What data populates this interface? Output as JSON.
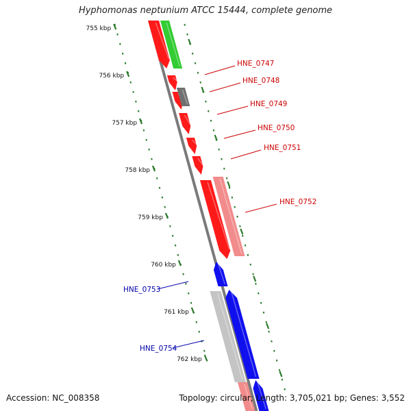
{
  "title": "Hyphomonas neptunium ATCC 15444, complete genome",
  "footer": {
    "accession": "Accession: NC_008358",
    "topology": "Topology: circular; Length: 3,705,021 bp; Genes: 3,552"
  },
  "colors": {
    "backbone": "#7a7a7a",
    "tick": "#2a7a2a",
    "dot": "#2a7a2a",
    "red": "#ff1a1a",
    "light_red": "#f28c8c",
    "green": "#33cc33",
    "gray": "#707070",
    "light_gray": "#c4c4c4",
    "blue": "#1010ee",
    "label_red": "#cc0000",
    "label_blue": "#0000aa"
  },
  "kbp_labels": [
    "755 kbp",
    "756 kbp",
    "757 kbp",
    "758 kbp",
    "759 kbp",
    "760 kbp",
    "761 kbp",
    "762 kbp"
  ],
  "genes": [
    {
      "label": "HNE_0747",
      "color": "red"
    },
    {
      "label": "HNE_0748",
      "color": "red"
    },
    {
      "label": "HNE_0749",
      "color": "red"
    },
    {
      "label": "HNE_0750",
      "color": "red"
    },
    {
      "label": "HNE_0751",
      "color": "red"
    },
    {
      "label": "HNE_0752",
      "color": "red"
    },
    {
      "label": "HNE_0753",
      "color": "blue"
    },
    {
      "label": "HNE_0754",
      "color": "blue"
    }
  ]
}
